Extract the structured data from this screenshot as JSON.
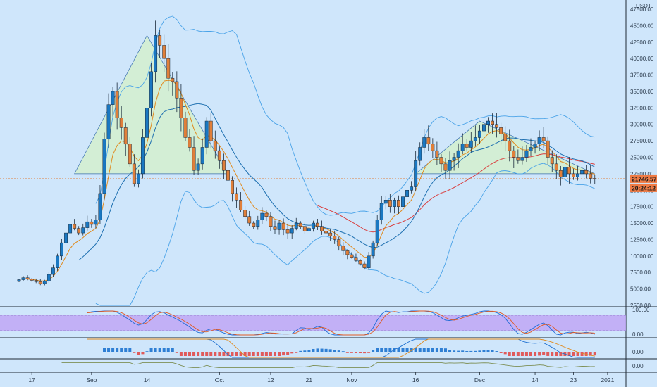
{
  "chart_data": {
    "type": "candlestick",
    "currency_label": "USDT",
    "year_label": "2021",
    "ylim": [
      2500,
      47500
    ],
    "y_ticks": [
      2500,
      5000,
      7500,
      10000,
      12500,
      15000,
      17500,
      20000,
      22500,
      25000,
      27500,
      30000,
      32500,
      35000,
      37500,
      40000,
      42500,
      45000,
      47500
    ],
    "x_ticks": [
      {
        "label": "17",
        "i": 3
      },
      {
        "label": "Sep",
        "i": 17
      },
      {
        "label": "14",
        "i": 30
      },
      {
        "label": "Oct",
        "i": 47
      },
      {
        "label": "12",
        "i": 59
      },
      {
        "label": "21",
        "i": 68
      },
      {
        "label": "Nov",
        "i": 78
      },
      {
        "label": "16",
        "i": 93
      },
      {
        "label": "Dec",
        "i": 108
      },
      {
        "label": "14",
        "i": 121
      },
      {
        "label": "23",
        "i": 130
      },
      {
        "label": "2021",
        "i": 138
      }
    ],
    "last_price": "21746.57",
    "countdown": "20:24:12",
    "closes": [
      6400,
      6700,
      6500,
      6300,
      6100,
      5800,
      6200,
      7200,
      8200,
      10000,
      12000,
      13500,
      14800,
      14200,
      13500,
      14300,
      15200,
      14800,
      15500,
      19500,
      27800,
      33000,
      35000,
      31000,
      29500,
      27000,
      24000,
      21000,
      22500,
      28000,
      32500,
      38000,
      43500,
      42000,
      40000,
      37000,
      36500,
      34000,
      31000,
      28000,
      26500,
      23000,
      24000,
      26500,
      30500,
      27500,
      26000,
      24500,
      23000,
      21500,
      19500,
      18500,
      17000,
      16000,
      15000,
      14500,
      15500,
      16500,
      16000,
      14500,
      14000,
      15000,
      14000,
      13500,
      14200,
      15000,
      14500,
      13800,
      14200,
      15000,
      14500,
      13800,
      13500,
      13000,
      12500,
      11500,
      10800,
      10200,
      9800,
      9300,
      8800,
      8200,
      10000,
      12000,
      15500,
      18000,
      18500,
      17500,
      18500,
      17500,
      19000,
      20000,
      20500,
      24500,
      26500,
      28000,
      27000,
      26000,
      25000,
      24000,
      23000,
      24500,
      25000,
      26000,
      27000,
      26500,
      27500,
      28000,
      29000,
      30000,
      30500,
      30000,
      29500,
      28500,
      27500,
      26000,
      25000,
      24500,
      25000,
      26000,
      26500,
      27000,
      28000,
      27500,
      25000,
      24000,
      23000,
      22000,
      23500,
      22500,
      22000,
      22500,
      23000,
      22500,
      21800,
      21746.57
    ],
    "series": [
      {
        "name": "Upper Band",
        "color": "#2f7fd4",
        "values": []
      },
      {
        "name": "Lower Band",
        "color": "#2f7fd4",
        "values": []
      },
      {
        "name": "Fast MA",
        "color": "#e08a1e",
        "values": []
      },
      {
        "name": "Slow MA",
        "color": "#1d6fb0",
        "values": []
      }
    ],
    "lower_panes": [
      {
        "name": "stoch",
        "ticks": [
          "100.00",
          "0.00"
        ]
      },
      {
        "name": "macd",
        "ticks": [
          "0.00"
        ]
      },
      {
        "name": "osc",
        "ticks": [
          "0.00"
        ]
      }
    ]
  },
  "colors": {
    "bg": "#cfe6fb",
    "up": "#1a78c2",
    "down": "#e07f3a",
    "price_line": "#e07f3a",
    "band": "#4aa3e8",
    "ma_fast": "#e08a1e",
    "ma_slow": "#1d6fb0",
    "red_ma": "#d94040",
    "pattern_fill": "#d4f0c8",
    "pattern_stroke": "#3a6fb0",
    "stoch_band": "#c0a6f5",
    "stoch_k": "#1e6ad6",
    "stoch_d": "#e05a24",
    "macd_line": "#1d6fd0",
    "signal_line": "#e08a1e",
    "hist_pos": "#2f7fd4",
    "hist_neg": "#e05a5a",
    "osc_line": "#7d8f55",
    "badge": "#ef7b45"
  }
}
